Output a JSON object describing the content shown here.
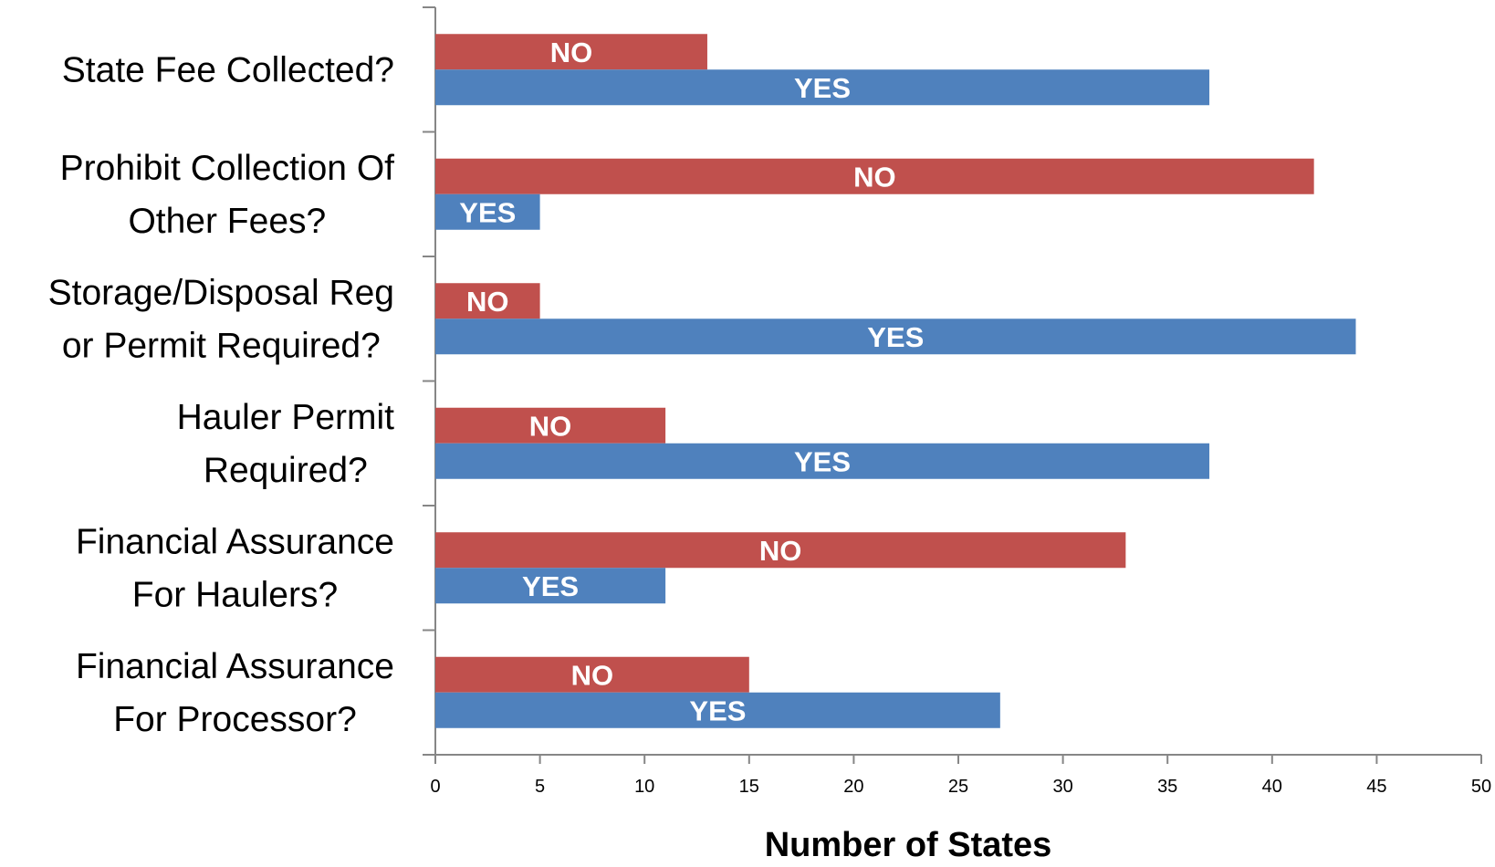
{
  "chart_data": {
    "type": "bar",
    "orientation": "horizontal",
    "categories": [
      [
        "State Fee Collected?"
      ],
      [
        "Prohibit Collection Of",
        "Other Fees?"
      ],
      [
        "Storage/Disposal Reg",
        "or Permit Required?"
      ],
      [
        "Hauler Permit",
        "Required?"
      ],
      [
        "Financial Assurance",
        "For Haulers?"
      ],
      [
        "Financial Assurance",
        "For Processor?"
      ]
    ],
    "series": [
      {
        "name": "NO",
        "color": "#c0504d",
        "values": [
          13,
          42,
          5,
          11,
          33,
          15
        ]
      },
      {
        "name": "YES",
        "color": "#4f81bd",
        "values": [
          37,
          5,
          44,
          37,
          11,
          27
        ]
      }
    ],
    "xlabel": "Number of States",
    "ylabel": "",
    "xlim": [
      0,
      50
    ],
    "xticks": [
      "0",
      "5",
      "10",
      "15",
      "20",
      "25",
      "30",
      "35",
      "40",
      "45",
      "50"
    ],
    "grid": false,
    "legend": "none"
  }
}
